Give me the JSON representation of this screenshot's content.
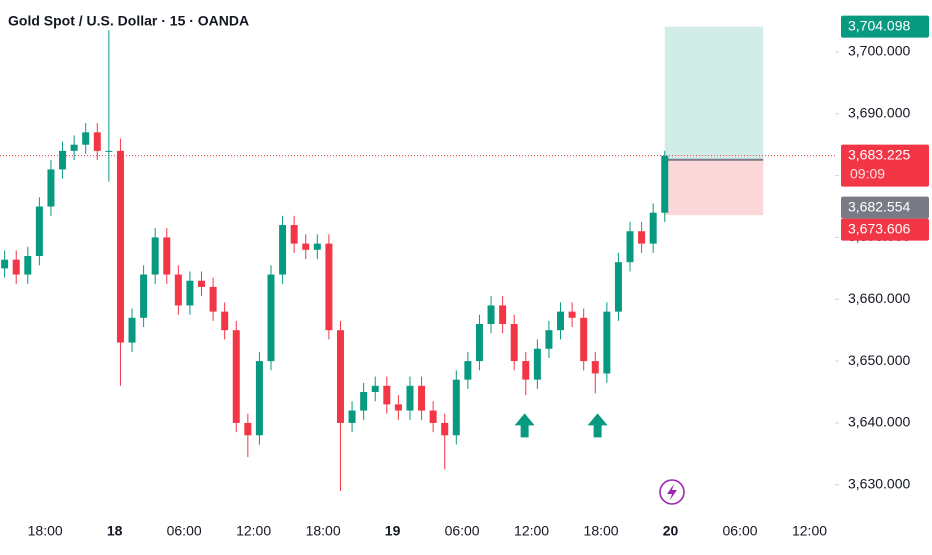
{
  "chart_data": {
    "type": "candlestick",
    "title": "Gold Spot / U.S. Dollar · 15 · OANDA",
    "up_color": "#089981",
    "down_color": "#f23645",
    "grid": false,
    "xlim": [
      14.1,
      86.2
    ],
    "ylim": [
      3624.3,
      3708.4
    ],
    "xticks": [
      {
        "value": 18,
        "label": "18:00"
      },
      {
        "value": 24,
        "label": "18"
      },
      {
        "value": 30,
        "label": "06:00"
      },
      {
        "value": 36,
        "label": "12:00"
      },
      {
        "value": 42,
        "label": "18:00"
      },
      {
        "value": 48,
        "label": "19"
      },
      {
        "value": 54,
        "label": "06:00"
      },
      {
        "value": 60,
        "label": "12:00"
      },
      {
        "value": 66,
        "label": "18:00"
      },
      {
        "value": 72,
        "label": "20"
      },
      {
        "value": 78,
        "label": "06:00"
      },
      {
        "value": 84,
        "label": "12:00"
      }
    ],
    "yticks": [
      {
        "value": 3630,
        "label": "3,630.000"
      },
      {
        "value": 3640,
        "label": "3,640.000"
      },
      {
        "value": 3650,
        "label": "3,650.000"
      },
      {
        "value": 3660,
        "label": "3,660.000"
      },
      {
        "value": 3670,
        "label": "3,670.000"
      },
      {
        "value": 3680,
        "label": "3,680.000"
      },
      {
        "value": 3690,
        "label": "3,690.000"
      },
      {
        "value": 3700,
        "label": "3,700.000"
      }
    ],
    "x": [
      14.5,
      15.5,
      16.5,
      17.5,
      18.5,
      19.5,
      20.5,
      21.5,
      22.5,
      23.5,
      24.5,
      25.5,
      26.5,
      27.5,
      28.5,
      29.5,
      30.5,
      31.5,
      32.5,
      33.5,
      34.5,
      35.5,
      36.5,
      37.5,
      38.5,
      39.5,
      40.5,
      41.5,
      42.5,
      43.5,
      44.5,
      45.5,
      46.5,
      47.5,
      48.5,
      49.5,
      50.5,
      51.5,
      52.5,
      53.5,
      54.5,
      55.5,
      56.5,
      57.5,
      58.5,
      59.5,
      60.5,
      61.5,
      62.5,
      63.5,
      64.5,
      65.5,
      66.5,
      67.5,
      68.5,
      69.5,
      70.5,
      71.5
    ],
    "open": [
      3665,
      3666.4,
      3664,
      3667,
      3675,
      3681,
      3684,
      3685,
      3687,
      3684,
      3684,
      3653,
      3657,
      3664,
      3670,
      3664,
      3659,
      3663,
      3662,
      3658,
      3655,
      3640,
      3638,
      3650,
      3664,
      3672,
      3669,
      3668,
      3669,
      3655,
      3640,
      3642,
      3645,
      3646,
      3643,
      3642,
      3646,
      3642,
      3640,
      3638,
      3647,
      3650,
      3656,
      3659,
      3656,
      3650,
      3647,
      3652,
      3655,
      3658,
      3657,
      3650,
      3648,
      3658,
      3666,
      3671,
      3669,
      3674
    ],
    "high": [
      3667.9,
      3667.9,
      3668.5,
      3676.5,
      3682.5,
      3685.5,
      3686.5,
      3688.5,
      3688.5,
      3703.5,
      3686,
      3658.5,
      3665.5,
      3671.5,
      3671.5,
      3665.5,
      3664.5,
      3664.5,
      3663.5,
      3659.5,
      3656.5,
      3641.5,
      3651.5,
      3665.5,
      3673.5,
      3673.5,
      3670.5,
      3670.5,
      3670.5,
      3656.5,
      3643.5,
      3646.5,
      3647.5,
      3647.5,
      3644.5,
      3647.5,
      3647.5,
      3643.5,
      3641.5,
      3648.5,
      3651.5,
      3657.5,
      3660.5,
      3660.5,
      3657.5,
      3651.5,
      3653.5,
      3656.5,
      3659.5,
      3659.5,
      3658.5,
      3651.5,
      3659.5,
      3667.5,
      3672.5,
      3672.5,
      3675.5,
      3684
    ],
    "low": [
      3663.5,
      3662.5,
      3662.5,
      3665.5,
      3673.5,
      3679.5,
      3682.5,
      3683.5,
      3682.5,
      3679,
      3646,
      3651.5,
      3655.5,
      3662.5,
      3662.5,
      3657.5,
      3657.5,
      3660.5,
      3656.5,
      3653.5,
      3638.5,
      3634.5,
      3636.5,
      3648.5,
      3662.5,
      3667.5,
      3666.5,
      3666.5,
      3653.5,
      3629,
      3638.5,
      3640.5,
      3643.5,
      3641.5,
      3640.5,
      3640.5,
      3640.5,
      3638.5,
      3632.5,
      3636.5,
      3645.5,
      3648.5,
      3654.5,
      3654.5,
      3648.5,
      3644.5,
      3645.5,
      3650.5,
      3653.5,
      3655.5,
      3648.5,
      3644.8,
      3646.5,
      3656.5,
      3664.5,
      3667.5,
      3667.5,
      3672.5
    ],
    "close": [
      3666.4,
      3664,
      3667,
      3675,
      3681,
      3684,
      3685,
      3687,
      3684,
      3684,
      3653,
      3657,
      3664,
      3670,
      3664,
      3659,
      3663,
      3662,
      3658,
      3655,
      3640,
      3638,
      3650,
      3664,
      3672,
      3669,
      3668,
      3669,
      3655,
      3640,
      3642,
      3645,
      3646,
      3643,
      3642,
      3646,
      3642,
      3640,
      3638,
      3647,
      3650,
      3656,
      3659,
      3656,
      3650,
      3647,
      3652,
      3655,
      3658,
      3657,
      3650,
      3648,
      3658,
      3666,
      3671,
      3669,
      3674,
      3683.2
    ],
    "position": {
      "x": [
        71.5,
        80
      ],
      "target": 3704.098,
      "entry": 3682.554,
      "stop": 3673.606,
      "target_color": "#089981",
      "entry_color": "#787b86",
      "stop_color": "#f23645",
      "value_labels": {
        "target": "3,704.098",
        "entry": "3,682.554",
        "stop": "3,673.606"
      }
    },
    "last_price": {
      "value": 3683.225,
      "label": "3,683.225",
      "countdown": "09:09",
      "color": "#f23645"
    },
    "markers": [
      {
        "x": 59.4,
        "y": 3639.6
      },
      {
        "x": 65.7,
        "y": 3639.6
      }
    ],
    "marker_color": "#089981"
  }
}
